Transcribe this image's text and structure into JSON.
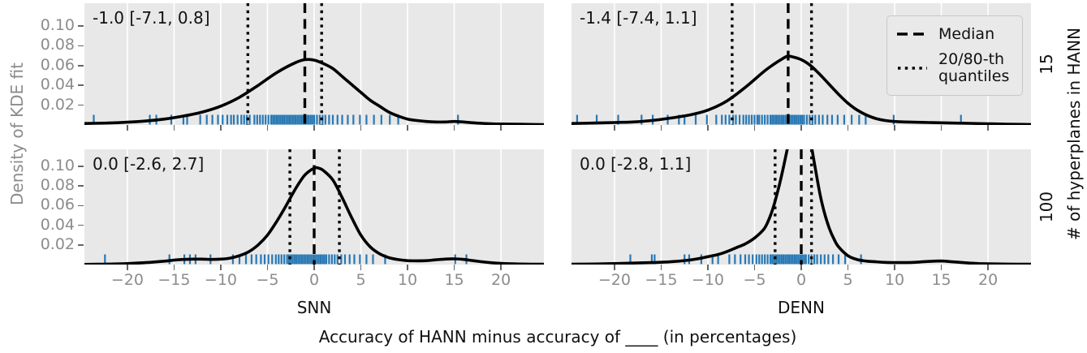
{
  "figure": {
    "ylabel": "Density of KDE fit",
    "xlabel": "Accuracy of HANN minus accuracy of ____ (in percentages)",
    "col_labels": [
      "SNN",
      "DENN"
    ],
    "row_labels": [
      "15",
      "100"
    ],
    "rows_title": "# of hyperplanes in HANN",
    "legend": {
      "median": "Median",
      "quantiles": "20/80-th quantiles"
    },
    "colors": {
      "panel_bg": "#e8e8e8",
      "grid": "#ffffff",
      "kde_line": "#000000",
      "rug": "#2878b4",
      "tick_label": "#8c8c8c",
      "text": "#111111"
    }
  },
  "chart_data": {
    "type": "line",
    "subtype": "kde-with-rug",
    "xlim": [
      -24.6,
      24.6
    ],
    "x_ticks": [
      -20,
      -15,
      -10,
      -5,
      0,
      5,
      10,
      15,
      20
    ],
    "x_tick_labels": [
      "−20",
      "−15",
      "−10",
      "−5",
      "0",
      "5",
      "10",
      "15",
      "20"
    ],
    "y_ticks": [
      0.02,
      0.04,
      0.06,
      0.08,
      0.1
    ],
    "y_tick_labels": [
      "0.02",
      "0.04",
      "0.06",
      "0.08",
      "0.10"
    ],
    "legend_position": "upper right of top-right panel",
    "grid": "vertical white gridlines on gray background",
    "panels": [
      {
        "col": "SNN",
        "row": "15",
        "annotation": "-1.0 [-7.1, 0.8]",
        "median": -1.0,
        "q20": -7.1,
        "q80": 0.8,
        "ymax": 0.123,
        "curve": [
          [
            -24.6,
            0.0015
          ],
          [
            -22,
            0.002
          ],
          [
            -20,
            0.0028
          ],
          [
            -18,
            0.004
          ],
          [
            -16,
            0.006
          ],
          [
            -14,
            0.009
          ],
          [
            -12,
            0.013
          ],
          [
            -10,
            0.019
          ],
          [
            -8,
            0.028
          ],
          [
            -6,
            0.04
          ],
          [
            -4,
            0.053
          ],
          [
            -2,
            0.063
          ],
          [
            -1,
            0.066
          ],
          [
            0,
            0.0655
          ],
          [
            1,
            0.062
          ],
          [
            2,
            0.057
          ],
          [
            3,
            0.049
          ],
          [
            4,
            0.041
          ],
          [
            5,
            0.033
          ],
          [
            6,
            0.025
          ],
          [
            7,
            0.019
          ],
          [
            8,
            0.013
          ],
          [
            9,
            0.009
          ],
          [
            10,
            0.006
          ],
          [
            11,
            0.0045
          ],
          [
            12,
            0.0035
          ],
          [
            13,
            0.003
          ],
          [
            14,
            0.003
          ],
          [
            15,
            0.0035
          ],
          [
            16,
            0.003
          ],
          [
            17,
            0.0022
          ],
          [
            18,
            0.0016
          ],
          [
            19,
            0.0012
          ],
          [
            20,
            0.001
          ],
          [
            22,
            0.0007
          ],
          [
            24.6,
            0.0004
          ]
        ],
        "rug": [
          -23.6,
          -17.6,
          -16.9,
          -15.3,
          -14.0,
          -13.6,
          -12.2,
          -11.5,
          -10.9,
          -10.3,
          -9.8,
          -9.3,
          -8.9,
          -8.6,
          -8.2,
          -7.8,
          -7.5,
          -7.2,
          -6.9,
          -6.4,
          -6.1,
          -5.8,
          -5.5,
          -5.2,
          -4.9,
          -4.6,
          -4.4,
          -4.2,
          -4.0,
          -3.8,
          -3.6,
          -3.4,
          -3.2,
          -3.0,
          -2.8,
          -2.6,
          -2.4,
          -2.2,
          -2.0,
          -1.8,
          -1.6,
          -1.4,
          -1.2,
          -1.0,
          -0.8,
          -0.6,
          -0.4,
          -0.2,
          0.0,
          0.3,
          0.6,
          0.9,
          1.2,
          1.6,
          2.0,
          2.5,
          3.0,
          3.6,
          4.2,
          4.9,
          5.6,
          6.4,
          7.2,
          8.1,
          9.0,
          15.4
        ]
      },
      {
        "col": "DENN",
        "row": "15",
        "annotation": "-1.4 [-7.4, 1.1]",
        "median": -1.4,
        "q20": -7.4,
        "q80": 1.1,
        "ymax": 0.123,
        "curve": [
          [
            -24.6,
            0.0015
          ],
          [
            -22,
            0.002
          ],
          [
            -20,
            0.0025
          ],
          [
            -18,
            0.003
          ],
          [
            -16,
            0.0045
          ],
          [
            -14,
            0.007
          ],
          [
            -12,
            0.01
          ],
          [
            -10,
            0.015
          ],
          [
            -8,
            0.024
          ],
          [
            -6,
            0.038
          ],
          [
            -4,
            0.054
          ],
          [
            -3,
            0.061
          ],
          [
            -2,
            0.067
          ],
          [
            -1.5,
            0.0695
          ],
          [
            -1,
            0.069
          ],
          [
            0,
            0.066
          ],
          [
            1,
            0.06
          ],
          [
            2,
            0.051
          ],
          [
            3,
            0.041
          ],
          [
            4,
            0.031
          ],
          [
            5,
            0.022
          ],
          [
            6,
            0.015
          ],
          [
            7,
            0.01
          ],
          [
            8,
            0.0065
          ],
          [
            9,
            0.0045
          ],
          [
            10,
            0.0035
          ],
          [
            12,
            0.0028
          ],
          [
            14,
            0.0024
          ],
          [
            16,
            0.002
          ],
          [
            18,
            0.0016
          ],
          [
            20,
            0.0012
          ],
          [
            22,
            0.0008
          ],
          [
            24.6,
            0.0005
          ]
        ],
        "rug": [
          -24.0,
          -21.9,
          -19.6,
          -17.1,
          -15.9,
          -14.3,
          -13.1,
          -12.5,
          -11.3,
          -10.1,
          -9.1,
          -8.5,
          -8.1,
          -7.7,
          -7.3,
          -7.0,
          -6.6,
          -6.2,
          -5.9,
          -5.6,
          -5.3,
          -5.0,
          -4.7,
          -4.5,
          -4.2,
          -3.9,
          -3.6,
          -3.3,
          -3.1,
          -2.9,
          -2.7,
          -2.5,
          -2.3,
          -2.1,
          -1.9,
          -1.7,
          -1.5,
          -1.3,
          -1.1,
          -0.9,
          -0.7,
          -0.5,
          -0.3,
          -0.1,
          0.1,
          0.3,
          0.6,
          0.9,
          1.2,
          1.5,
          1.9,
          2.3,
          2.8,
          3.3,
          3.9,
          4.6,
          5.4,
          6.2,
          6.9,
          9.9,
          17.1
        ]
      },
      {
        "col": "SNN",
        "row": "100",
        "annotation": "0.0 [-2.6, 2.7]",
        "median": 0.0,
        "q20": -2.6,
        "q80": 2.7,
        "ymax": 0.1172,
        "curve": [
          [
            -24.6,
            0.0002
          ],
          [
            -22,
            0.0005
          ],
          [
            -20,
            0.001
          ],
          [
            -18,
            0.002
          ],
          [
            -16,
            0.0035
          ],
          [
            -15,
            0.0045
          ],
          [
            -14,
            0.0052
          ],
          [
            -13,
            0.0055
          ],
          [
            -12,
            0.0055
          ],
          [
            -11,
            0.0052
          ],
          [
            -10,
            0.0055
          ],
          [
            -9,
            0.0065
          ],
          [
            -8,
            0.009
          ],
          [
            -7,
            0.013
          ],
          [
            -6,
            0.02
          ],
          [
            -5,
            0.03
          ],
          [
            -4,
            0.044
          ],
          [
            -3,
            0.06
          ],
          [
            -2,
            0.077
          ],
          [
            -1,
            0.091
          ],
          [
            0,
            0.098
          ],
          [
            0.5,
            0.098
          ],
          [
            1,
            0.0955
          ],
          [
            2,
            0.086
          ],
          [
            3,
            0.068
          ],
          [
            4,
            0.048
          ],
          [
            5,
            0.03
          ],
          [
            6,
            0.018
          ],
          [
            7,
            0.011
          ],
          [
            8,
            0.007
          ],
          [
            9,
            0.005
          ],
          [
            10,
            0.004
          ],
          [
            11,
            0.0038
          ],
          [
            12,
            0.004
          ],
          [
            13,
            0.0048
          ],
          [
            14,
            0.0055
          ],
          [
            15,
            0.0058
          ],
          [
            16,
            0.0052
          ],
          [
            17,
            0.004
          ],
          [
            18,
            0.0028
          ],
          [
            19,
            0.0018
          ],
          [
            20,
            0.0012
          ],
          [
            22,
            0.0006
          ],
          [
            24.6,
            0.0003
          ]
        ],
        "rug": [
          -22.4,
          -15.5,
          -13.9,
          -13.3,
          -12.7,
          -11.1,
          -8.7,
          -8.0,
          -7.3,
          -6.7,
          -6.2,
          -5.7,
          -5.3,
          -4.9,
          -4.5,
          -4.1,
          -3.8,
          -3.5,
          -3.2,
          -2.9,
          -2.7,
          -2.5,
          -2.3,
          -2.1,
          -1.9,
          -1.7,
          -1.5,
          -1.3,
          -1.1,
          -0.9,
          -0.7,
          -0.5,
          -0.3,
          -0.1,
          0.1,
          0.3,
          0.5,
          0.7,
          0.9,
          1.1,
          1.3,
          1.6,
          1.9,
          2.2,
          2.5,
          2.9,
          3.3,
          3.8,
          4.3,
          4.9,
          5.6,
          6.3,
          7.6,
          15.1,
          16.3
        ]
      },
      {
        "col": "DENN",
        "row": "100",
        "annotation": "0.0 [-2.8, 1.1]",
        "median": 0.0,
        "q20": -2.8,
        "q80": 1.1,
        "ymax": 0.1172,
        "curve": [
          [
            -24.6,
            0.0003
          ],
          [
            -22,
            0.0006
          ],
          [
            -20,
            0.001
          ],
          [
            -18,
            0.0015
          ],
          [
            -16,
            0.002
          ],
          [
            -14,
            0.0028
          ],
          [
            -12,
            0.0045
          ],
          [
            -11,
            0.006
          ],
          [
            -10,
            0.008
          ],
          [
            -9,
            0.01
          ],
          [
            -8,
            0.013
          ],
          [
            -7,
            0.017
          ],
          [
            -6,
            0.021
          ],
          [
            -5,
            0.027
          ],
          [
            -4,
            0.036
          ],
          [
            -3.5,
            0.045
          ],
          [
            -3,
            0.058
          ],
          [
            -2.5,
            0.075
          ],
          [
            -2,
            0.095
          ],
          [
            -1.5,
            0.117
          ],
          [
            -1,
            0.141
          ],
          [
            -0.5,
            0.153
          ],
          [
            0,
            0.155
          ],
          [
            0.5,
            0.146
          ],
          [
            1,
            0.125
          ],
          [
            1.5,
            0.098
          ],
          [
            2,
            0.072
          ],
          [
            2.5,
            0.052
          ],
          [
            3,
            0.037
          ],
          [
            3.5,
            0.026
          ],
          [
            4,
            0.018
          ],
          [
            5,
            0.009
          ],
          [
            6,
            0.005
          ],
          [
            7,
            0.0035
          ],
          [
            8,
            0.0028
          ],
          [
            9,
            0.0022
          ],
          [
            10,
            0.002
          ],
          [
            11,
            0.002
          ],
          [
            12,
            0.0022
          ],
          [
            13,
            0.0028
          ],
          [
            14,
            0.0034
          ],
          [
            15,
            0.0036
          ],
          [
            16,
            0.003
          ],
          [
            17,
            0.0022
          ],
          [
            18,
            0.0015
          ],
          [
            19,
            0.001
          ],
          [
            20,
            0.0008
          ],
          [
            22,
            0.0005
          ],
          [
            24.6,
            0.0003
          ]
        ],
        "rug": [
          -18.3,
          -16.0,
          -15.7,
          -12.5,
          -12.0,
          -10.7,
          -9.5,
          -8.9,
          -7.7,
          -7.1,
          -6.5,
          -6.0,
          -5.6,
          -5.2,
          -4.8,
          -4.5,
          -4.2,
          -3.9,
          -3.6,
          -3.3,
          -3.1,
          -2.9,
          -2.7,
          -2.5,
          -2.3,
          -2.1,
          -1.9,
          -1.7,
          -1.5,
          -1.3,
          -1.1,
          -0.9,
          -0.7,
          -0.5,
          -0.3,
          -0.1,
          0.1,
          0.3,
          0.5,
          0.8,
          1.1,
          1.4,
          1.7,
          2.1,
          2.5,
          2.9,
          3.4,
          4.0,
          4.7,
          6.4
        ]
      }
    ]
  }
}
